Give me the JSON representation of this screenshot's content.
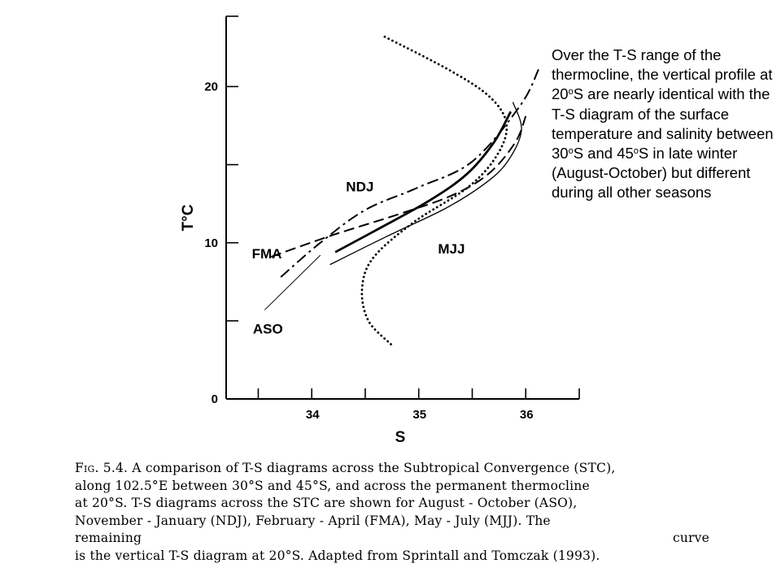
{
  "annotation": {
    "p1": "Over the T-S range of the thermocline, the vertical profile at 20",
    "sup1": "o",
    "p2": "S are nearly identical with the T-S diagram of the surface temperature and salinity between 30",
    "sup2": "o",
    "p3": "S and 45",
    "sup3": "o",
    "p4": "S in late winter (August-October) but different during all other seasons"
  },
  "caption": {
    "fig_label": "Fig.",
    "fig_number": "5.4.",
    "line1": "A comparison of T-S diagrams across the Subtropical Convergence (STC),",
    "line2": "along 102.5°E between 30°S and 45°S, and across the permanent thermocline",
    "line3": "at 20°S. T-S diagrams across the STC are shown for August - October (ASO),",
    "line4": "November - January (NDJ), February - April (FMA), May - July (MJJ). The",
    "line5a": "remaining",
    "line5b": "curve",
    "line6": "is the vertical T-S diagram at 20°S. Adapted from Sprintall and Tomczak (1993)."
  },
  "chart_data": {
    "type": "line",
    "xlabel": "S",
    "ylabel": "T°C",
    "xlim": [
      33.2,
      36.5
    ],
    "ylim": [
      0,
      24.5
    ],
    "x_ticks": [
      34,
      35,
      36
    ],
    "x_tick_labels": [
      "34",
      "35",
      "36"
    ],
    "x_minor_ticks": [
      33.5,
      34.5,
      35.5,
      36.5
    ],
    "y_ticks": [
      0,
      10,
      20
    ],
    "y_tick_labels": [
      "0",
      "10",
      "20"
    ],
    "y_minor_ticks": [
      5,
      15
    ],
    "grid": false,
    "series": [
      {
        "name": "NDJ",
        "style": "dash-dot",
        "points": [
          [
            33.71,
            7.8
          ],
          [
            34.08,
            10.0
          ],
          [
            34.5,
            12.1
          ],
          [
            34.98,
            13.5
          ],
          [
            35.5,
            15.2
          ],
          [
            35.95,
            18.8
          ],
          [
            36.12,
            21.1
          ]
        ]
      },
      {
        "name": "FMA",
        "style": "dashed",
        "points": [
          [
            33.62,
            9.1
          ],
          [
            34.2,
            10.5
          ],
          [
            34.8,
            11.8
          ],
          [
            35.3,
            13.0
          ],
          [
            35.65,
            14.4
          ],
          [
            35.9,
            16.4
          ],
          [
            36.0,
            18.1
          ]
        ]
      },
      {
        "name": "MJJ",
        "style": "thin-solid",
        "points": [
          [
            34.17,
            8.6
          ],
          [
            34.7,
            10.4
          ],
          [
            35.25,
            12.2
          ],
          [
            35.62,
            13.8
          ],
          [
            35.83,
            15.2
          ],
          [
            35.96,
            17.2
          ],
          [
            35.88,
            19.0
          ]
        ]
      },
      {
        "name": "ASO",
        "style": "thick-solid",
        "points": [
          [
            34.22,
            9.4
          ],
          [
            34.6,
            10.8
          ],
          [
            35.1,
            12.7
          ],
          [
            35.45,
            14.4
          ],
          [
            35.7,
            16.4
          ],
          [
            35.86,
            18.4
          ]
        ]
      },
      {
        "name": "",
        "style": "dotted",
        "points": [
          [
            34.74,
            3.5
          ],
          [
            34.53,
            5.0
          ],
          [
            34.47,
            7.0
          ],
          [
            34.57,
            9.0
          ],
          [
            34.95,
            11.3
          ],
          [
            35.47,
            13.6
          ],
          [
            35.74,
            15.7
          ],
          [
            35.82,
            17.6
          ],
          [
            35.67,
            19.3
          ],
          [
            35.3,
            21.0
          ],
          [
            34.65,
            23.3
          ]
        ]
      }
    ],
    "labels": [
      {
        "text": "NDJ",
        "x": 34.32,
        "y": 13.3
      },
      {
        "text": "FMA",
        "x": 33.44,
        "y": 9.0
      },
      {
        "text": "MJJ",
        "x": 35.18,
        "y": 9.3
      },
      {
        "text": "ASO",
        "x": 33.45,
        "y": 4.2
      }
    ],
    "leader": {
      "from": [
        33.56,
        5.7
      ],
      "to": [
        34.08,
        9.2
      ]
    }
  }
}
